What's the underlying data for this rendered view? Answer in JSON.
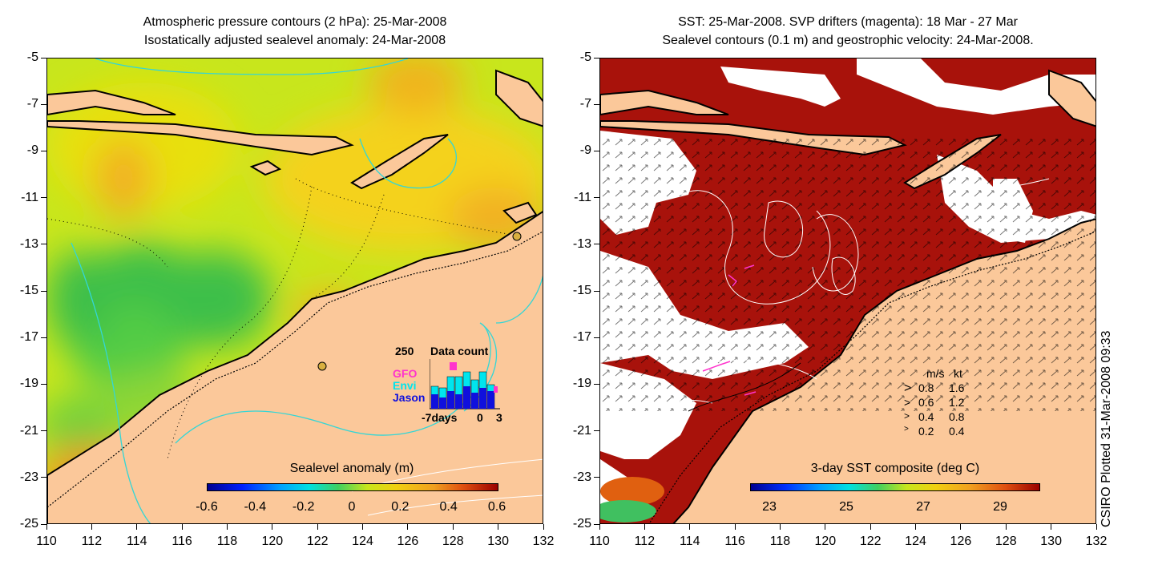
{
  "left_panel": {
    "title_line1": "Atmospheric pressure contours (2 hPa): 25-Mar-2008",
    "title_line2": "Isostatically adjusted sealevel anomaly: 24-Mar-2008",
    "colorbar": {
      "title": "Sealevel anomaly (m)",
      "ticks": [
        "-0.6",
        "-0.4",
        "-0.2",
        "0",
        "0.2",
        "0.4",
        "0.6"
      ],
      "range": [
        -0.6,
        0.6
      ]
    },
    "inset": {
      "title": "Data count",
      "ymax_label": "250",
      "series": [
        "GFO",
        "Envi",
        "Jason"
      ],
      "series_colors": [
        "#ff33cc",
        "#00e5ee",
        "#1010dd"
      ],
      "x_labels": [
        "-7days",
        "0",
        "3"
      ]
    }
  },
  "right_panel": {
    "title_line1": "SST: 25-Mar-2008. SVP drifters (magenta): 18 Mar - 27 Mar",
    "title_line2": "Sealevel contours (0.1 m) and geostrophic velocity: 24-Mar-2008.",
    "colorbar": {
      "title": "3-day SST composite (deg C)",
      "ticks": [
        "23",
        "25",
        "27",
        "29"
      ],
      "range": [
        22.5,
        30
      ]
    },
    "velocity_legend": {
      "header_ms": "m/s",
      "header_kt": "kt",
      "rows": [
        {
          "ms": "0.8",
          "kt": "1.6"
        },
        {
          "ms": "0.6",
          "kt": "1.2"
        },
        {
          "ms": "0.4",
          "kt": "0.8"
        },
        {
          "ms": "0.2",
          "kt": "0.4"
        }
      ]
    }
  },
  "axes": {
    "x_ticks": [
      "110",
      "112",
      "114",
      "116",
      "118",
      "120",
      "122",
      "124",
      "126",
      "128",
      "130",
      "132"
    ],
    "y_ticks": [
      "-5",
      "-7",
      "-9",
      "-11",
      "-13",
      "-15",
      "-17",
      "-19",
      "-21",
      "-23",
      "-25"
    ],
    "lon_range": [
      110,
      132
    ],
    "lat_range": [
      -25,
      -5
    ]
  },
  "credit": "CSIRO Plotted 31-Mar-2008 09:33",
  "colors": {
    "land": "#fbc89a",
    "ocean_sst": "#a00e0a",
    "cloud": "#ffffff",
    "bathymetry": "#33d6d6"
  }
}
